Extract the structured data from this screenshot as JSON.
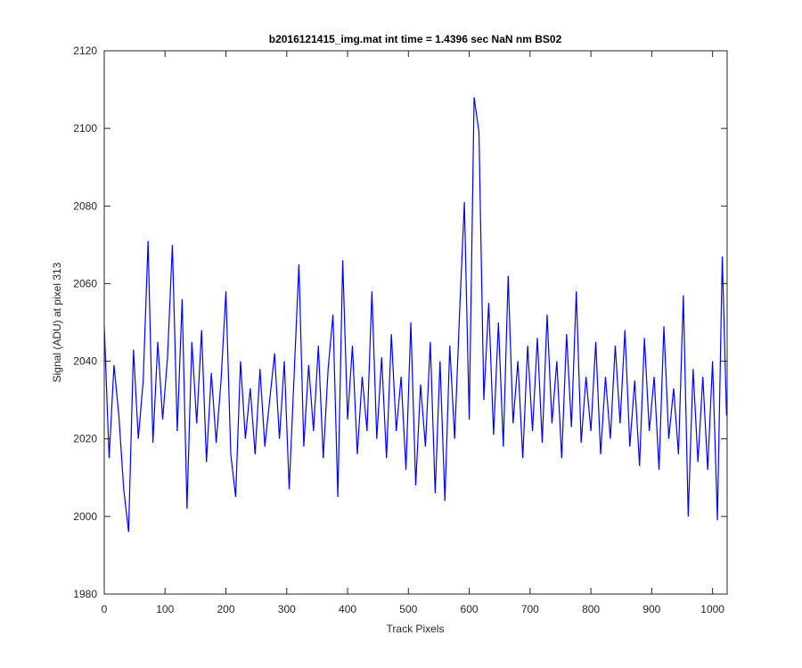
{
  "chart_data": {
    "type": "line",
    "title": "b2016121415_img.mat int time = 1.4396 sec  NaN nm BS02",
    "x_label": "Track Pixels",
    "y_label": "Signal (ADU) at pixel 313",
    "xlim": [
      0,
      1024
    ],
    "ylim": [
      1980,
      2120
    ],
    "xticks": [
      0,
      100,
      200,
      300,
      400,
      500,
      600,
      700,
      800,
      900,
      1000
    ],
    "yticks": [
      1980,
      2000,
      2020,
      2040,
      2060,
      2080,
      2100,
      2120
    ],
    "grid": false,
    "x": [
      0,
      8,
      16,
      24,
      32,
      40,
      48,
      56,
      64,
      72,
      80,
      88,
      96,
      104,
      112,
      120,
      128,
      136,
      144,
      152,
      160,
      168,
      176,
      184,
      192,
      200,
      208,
      216,
      224,
      232,
      240,
      248,
      256,
      264,
      272,
      280,
      288,
      296,
      304,
      312,
      320,
      328,
      336,
      344,
      352,
      360,
      368,
      376,
      384,
      392,
      400,
      408,
      416,
      424,
      432,
      440,
      448,
      456,
      464,
      472,
      480,
      488,
      496,
      504,
      512,
      520,
      528,
      536,
      544,
      552,
      560,
      568,
      576,
      584,
      592,
      600,
      608,
      616,
      624,
      632,
      640,
      648,
      656,
      664,
      672,
      680,
      688,
      696,
      704,
      712,
      720,
      728,
      736,
      744,
      752,
      760,
      768,
      776,
      784,
      792,
      800,
      808,
      816,
      824,
      832,
      840,
      848,
      856,
      864,
      872,
      880,
      888,
      896,
      904,
      912,
      920,
      928,
      936,
      944,
      952,
      960,
      968,
      976,
      984,
      992,
      1000,
      1008,
      1016,
      1023
    ],
    "series": [
      {
        "color": "#0000ff",
        "values": [
          2049,
          2015,
          2039,
          2026,
          2007,
          1996,
          2043,
          2020,
          2035,
          2071,
          2019,
          2045,
          2025,
          2041,
          2070,
          2022,
          2056,
          2002,
          2045,
          2024,
          2048,
          2014,
          2037,
          2019,
          2035,
          2058,
          2016,
          2005,
          2040,
          2020,
          2033,
          2016,
          2038,
          2018,
          2030,
          2042,
          2020,
          2040,
          2007,
          2036,
          2065,
          2018,
          2039,
          2022,
          2044,
          2015,
          2038,
          2052,
          2005,
          2066,
          2025,
          2044,
          2016,
          2036,
          2022,
          2058,
          2020,
          2041,
          2015,
          2047,
          2022,
          2036,
          2012,
          2050,
          2008,
          2034,
          2018,
          2045,
          2006,
          2040,
          2004,
          2044,
          2020,
          2052,
          2081,
          2025,
          2108,
          2099,
          2030,
          2055,
          2021,
          2050,
          2018,
          2062,
          2024,
          2040,
          2015,
          2044,
          2022,
          2046,
          2019,
          2052,
          2024,
          2040,
          2015,
          2047,
          2023,
          2058,
          2019,
          2036,
          2022,
          2045,
          2016,
          2036,
          2020,
          2044,
          2024,
          2048,
          2018,
          2035,
          2013,
          2046,
          2022,
          2036,
          2012,
          2049,
          2020,
          2033,
          2016,
          2057,
          2000,
          2038,
          2014,
          2036,
          2012,
          2040,
          1999,
          2067,
          2026
        ]
      }
    ]
  }
}
